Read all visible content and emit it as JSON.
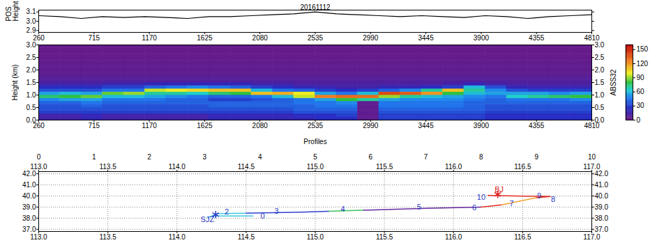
{
  "chart_data": [
    {
      "type": "line",
      "title": "20161112",
      "ylabel": "POS Height",
      "color": "#000000",
      "x": [
        260,
        435,
        610,
        785,
        960,
        1135,
        1310,
        1485,
        1660,
        1835,
        2010,
        2185,
        2360,
        2535,
        2710,
        2885,
        3060,
        3235,
        3410,
        3585,
        3760,
        3935,
        4110,
        4285,
        4460,
        4635,
        4810
      ],
      "values": [
        3.06,
        3.05,
        3.03,
        3.05,
        3.04,
        3.05,
        3.04,
        3.03,
        3.05,
        3.05,
        3.06,
        3.07,
        3.08,
        3.1,
        3.08,
        3.07,
        3.06,
        3.05,
        3.06,
        3.05,
        3.04,
        3.06,
        3.05,
        3.03,
        3.05,
        3.06,
        3.07
      ],
      "xlim": [
        260,
        4810
      ],
      "xticks": [
        260,
        715,
        1170,
        1625,
        2080,
        2535,
        2990,
        3445,
        3900,
        4355,
        4810
      ],
      "ylim": [
        2.88,
        3.12
      ],
      "yticks": [
        2.9,
        {
          "value": 3,
          "label": "3.0"
        },
        3.1
      ]
    },
    {
      "type": "heatmap",
      "xlabel": "Profiles",
      "ylabel": "Height (km)",
      "y2label": "ABSS32",
      "x_edges": [
        260,
        435,
        610,
        785,
        960,
        1135,
        1310,
        1485,
        1660,
        1835,
        2010,
        2185,
        2360,
        2535,
        2710,
        2885,
        3060,
        3235,
        3410,
        3585,
        3760,
        3935,
        4110,
        4285,
        4460,
        4635,
        4810
      ],
      "y_edges": [
        0,
        0.125,
        0.25,
        0.375,
        0.5,
        0.625,
        0.75,
        0.875,
        1,
        1.125,
        1.25,
        1.375,
        1.5,
        1.625,
        1.75,
        1.875,
        2,
        2.125,
        2.25,
        2.375,
        2.5,
        2.625,
        2.75,
        2.875,
        3
      ],
      "cells": [
        [
          15,
          15,
          30,
          35,
          35,
          40,
          50,
          75,
          55,
          35,
          25,
          15,
          10,
          8,
          6,
          5,
          5,
          5,
          4,
          4,
          3,
          3,
          3,
          3
        ],
        [
          15,
          15,
          30,
          35,
          35,
          40,
          55,
          80,
          60,
          35,
          25,
          15,
          10,
          8,
          6,
          5,
          5,
          5,
          4,
          4,
          3,
          3,
          3,
          3
        ],
        [
          20,
          20,
          30,
          35,
          40,
          45,
          55,
          85,
          55,
          35,
          25,
          15,
          10,
          8,
          6,
          5,
          5,
          5,
          4,
          4,
          3,
          3,
          3,
          3
        ],
        [
          15,
          15,
          30,
          35,
          35,
          40,
          45,
          60,
          85,
          45,
          30,
          18,
          10,
          8,
          6,
          5,
          5,
          5,
          4,
          4,
          3,
          3,
          3,
          3
        ],
        [
          15,
          15,
          30,
          35,
          35,
          40,
          45,
          60,
          90,
          45,
          30,
          18,
          10,
          8,
          6,
          5,
          5,
          5,
          4,
          4,
          3,
          3,
          3,
          3
        ],
        [
          15,
          15,
          30,
          35,
          35,
          40,
          45,
          55,
          70,
          95,
          40,
          20,
          10,
          8,
          6,
          5,
          5,
          5,
          4,
          4,
          3,
          3,
          3,
          3
        ],
        [
          15,
          15,
          30,
          35,
          35,
          40,
          40,
          50,
          70,
          100,
          45,
          20,
          10,
          8,
          6,
          5,
          5,
          5,
          4,
          4,
          3,
          3,
          3,
          3
        ],
        [
          15,
          15,
          30,
          35,
          35,
          40,
          40,
          45,
          65,
          105,
          50,
          20,
          10,
          8,
          6,
          5,
          5,
          5,
          4,
          4,
          3,
          3,
          3,
          3
        ],
        [
          20,
          20,
          30,
          35,
          40,
          40,
          30,
          40,
          75,
          110,
          45,
          20,
          10,
          8,
          6,
          5,
          5,
          5,
          4,
          4,
          3,
          3,
          3,
          3
        ],
        [
          20,
          20,
          30,
          35,
          40,
          40,
          30,
          40,
          80,
          110,
          40,
          20,
          10,
          8,
          6,
          5,
          5,
          5,
          4,
          4,
          3,
          3,
          3,
          3
        ],
        [
          20,
          20,
          30,
          35,
          40,
          40,
          35,
          45,
          110,
          60,
          30,
          15,
          10,
          8,
          6,
          5,
          5,
          5,
          4,
          4,
          3,
          3,
          3,
          3
        ],
        [
          20,
          20,
          30,
          35,
          40,
          40,
          40,
          60,
          115,
          45,
          25,
          15,
          10,
          8,
          6,
          5,
          5,
          5,
          4,
          4,
          3,
          3,
          3,
          3
        ],
        [
          20,
          25,
          35,
          40,
          40,
          45,
          45,
          95,
          100,
          40,
          20,
          12,
          10,
          8,
          6,
          5,
          5,
          5,
          4,
          4,
          3,
          3,
          3,
          3
        ],
        [
          25,
          25,
          35,
          40,
          45,
          45,
          55,
          125,
          55,
          30,
          18,
          12,
          10,
          8,
          6,
          5,
          5,
          5,
          4,
          4,
          3,
          3,
          3,
          3
        ],
        [
          25,
          30,
          35,
          40,
          45,
          50,
          80,
          130,
          45,
          25,
          15,
          12,
          10,
          8,
          6,
          5,
          5,
          5,
          4,
          4,
          3,
          3,
          3,
          3
        ],
        [
          5,
          5,
          5,
          5,
          5,
          5,
          70,
          130,
          60,
          30,
          15,
          12,
          10,
          8,
          6,
          5,
          5,
          5,
          4,
          4,
          3,
          3,
          3,
          3
        ],
        [
          30,
          30,
          35,
          40,
          45,
          45,
          55,
          90,
          140,
          40,
          20,
          12,
          10,
          8,
          6,
          5,
          5,
          5,
          4,
          4,
          3,
          3,
          3,
          3
        ],
        [
          30,
          30,
          35,
          40,
          45,
          45,
          50,
          70,
          135,
          50,
          20,
          12,
          10,
          8,
          6,
          5,
          5,
          5,
          4,
          4,
          3,
          3,
          3,
          3
        ],
        [
          30,
          30,
          35,
          40,
          45,
          45,
          50,
          60,
          120,
          70,
          25,
          12,
          10,
          8,
          6,
          5,
          5,
          5,
          4,
          4,
          3,
          3,
          3,
          3
        ],
        [
          30,
          30,
          35,
          40,
          45,
          45,
          50,
          55,
          80,
          110,
          30,
          15,
          10,
          8,
          6,
          5,
          5,
          5,
          4,
          4,
          3,
          3,
          3,
          3
        ],
        [
          30,
          30,
          35,
          40,
          40,
          40,
          45,
          50,
          60,
          70,
          60,
          20,
          10,
          8,
          6,
          5,
          5,
          5,
          4,
          4,
          3,
          3,
          3,
          3
        ],
        [
          25,
          25,
          30,
          35,
          35,
          40,
          40,
          45,
          55,
          50,
          35,
          15,
          10,
          8,
          6,
          5,
          5,
          5,
          4,
          4,
          3,
          3,
          3,
          3
        ],
        [
          25,
          25,
          30,
          35,
          35,
          40,
          45,
          65,
          55,
          35,
          20,
          12,
          10,
          8,
          6,
          5,
          5,
          5,
          4,
          4,
          3,
          3,
          3,
          3
        ],
        [
          25,
          25,
          30,
          35,
          35,
          40,
          45,
          70,
          55,
          30,
          18,
          12,
          10,
          8,
          6,
          5,
          5,
          5,
          4,
          4,
          3,
          3,
          3,
          3
        ],
        [
          25,
          25,
          30,
          35,
          35,
          40,
          45,
          75,
          50,
          30,
          18,
          12,
          10,
          8,
          6,
          5,
          5,
          5,
          4,
          4,
          3,
          3,
          3,
          3
        ],
        [
          25,
          25,
          30,
          35,
          35,
          40,
          50,
          80,
          55,
          30,
          18,
          12,
          10,
          8,
          6,
          5,
          5,
          5,
          4,
          4,
          3,
          3,
          3,
          3
        ]
      ],
      "xlim": [
        260,
        4810
      ],
      "xticks": [
        260,
        715,
        1170,
        1625,
        2080,
        2535,
        2990,
        3445,
        3900,
        4355,
        4810
      ],
      "ylim": [
        0,
        3
      ],
      "yticks": [
        {
          "value": 0,
          "label": "0.0"
        },
        0.5,
        {
          "value": 1,
          "label": "1.0"
        },
        1.5,
        {
          "value": 2,
          "label": "2.0"
        },
        2.5,
        {
          "value": 3,
          "label": "3.0"
        }
      ],
      "colorbar": {
        "range": [
          0,
          160
        ],
        "ticks": [
          0,
          30,
          60,
          90,
          120,
          150
        ]
      }
    },
    {
      "type": "map",
      "grid": true,
      "xlim": [
        113,
        117
      ],
      "xticks": [
        {
          "value": 113,
          "label": "113.0"
        },
        113.5,
        {
          "value": 114,
          "label": "114.0"
        },
        114.5,
        {
          "value": 115,
          "label": "115.0"
        },
        115.5,
        {
          "value": 116,
          "label": "116.0"
        },
        116.5,
        {
          "value": 117,
          "label": "117.0"
        }
      ],
      "x2ticks": [
        {
          "value": 113,
          "label": "0"
        },
        {
          "value": 113.4,
          "label": "1"
        },
        {
          "value": 113.8,
          "label": "2"
        },
        {
          "value": 114.2,
          "label": "3"
        },
        {
          "value": 114.6,
          "label": "4"
        },
        {
          "value": 115,
          "label": "5"
        },
        {
          "value": 115.4,
          "label": "6"
        },
        {
          "value": 115.8,
          "label": "7"
        },
        {
          "value": 116.2,
          "label": "8"
        },
        {
          "value": 116.6,
          "label": "9"
        },
        {
          "value": 117,
          "label": "10"
        }
      ],
      "ylim": [
        36.8,
        42.2
      ],
      "yticks": [
        {
          "value": 37,
          "label": "37.0"
        },
        {
          "value": 38,
          "label": "38.0"
        },
        {
          "value": 39,
          "label": "39.0"
        },
        {
          "value": 40,
          "label": "40.0"
        },
        {
          "value": 41,
          "label": "41.0"
        },
        {
          "value": 42,
          "label": "42.0"
        }
      ],
      "series": [
        {
          "color": "#40c8e0",
          "lon": [
            114.22,
            114.3,
            114.5
          ],
          "lat": [
            38.05,
            38.42,
            38.45
          ]
        },
        {
          "color": "#40c8e0",
          "lon": [
            114.27,
            114.55
          ],
          "lat": [
            38.2,
            38.2
          ]
        },
        {
          "color": "#3040d0",
          "lon": [
            114.5,
            114.9,
            115.1
          ],
          "lat": [
            38.45,
            38.55,
            38.62
          ]
        },
        {
          "color": "#40c060",
          "lon": [
            115.1,
            115.35
          ],
          "lat": [
            38.62,
            38.72
          ]
        },
        {
          "color": "#6a2aa0",
          "lon": [
            115.35,
            115.8,
            116.2
          ],
          "lat": [
            38.72,
            38.88,
            39.0
          ]
        },
        {
          "color": "#e03020",
          "lon": [
            116.2,
            116.35
          ],
          "lat": [
            39.0,
            39.2
          ]
        },
        {
          "color": "#f0a030",
          "lon": [
            116.35,
            116.6
          ],
          "lat": [
            39.2,
            39.85
          ]
        },
        {
          "color": "#e03020",
          "lon": [
            116.6,
            116.7,
            116.25
          ],
          "lat": [
            39.85,
            39.95,
            40.05
          ]
        }
      ],
      "annotations": [
        {
          "text": "0",
          "lon": 114.62,
          "lat": 38.2,
          "color": "#2a3ac8"
        },
        {
          "text": "2",
          "lon": 114.36,
          "lat": 38.55,
          "color": "#2a3ac8"
        },
        {
          "text": "3",
          "lon": 114.72,
          "lat": 38.65,
          "color": "#2a3ac8"
        },
        {
          "text": "4",
          "lon": 115.2,
          "lat": 38.8,
          "color": "#2a3ac8"
        },
        {
          "text": "5",
          "lon": 115.75,
          "lat": 39.0,
          "color": "#2a3ac8"
        },
        {
          "text": "6",
          "lon": 116.15,
          "lat": 38.92,
          "color": "#2a3ac8"
        },
        {
          "text": "7",
          "lon": 116.42,
          "lat": 39.3,
          "color": "#2a3ac8"
        },
        {
          "text": "8",
          "lon": 116.72,
          "lat": 39.7,
          "color": "#2a3ac8"
        },
        {
          "text": "9",
          "lon": 116.62,
          "lat": 40.0,
          "color": "#2a3ac8"
        },
        {
          "text": "10",
          "lon": 116.2,
          "lat": 39.85,
          "color": "#2a3ac8"
        }
      ],
      "stations": [
        {
          "name": "SJZ",
          "lon": 114.28,
          "lat": 38.32,
          "label_lon": 114.22,
          "label_lat": 37.85,
          "color": "#2a3ac8",
          "marker": "asterisk"
        },
        {
          "name": "BJ",
          "lon": 116.32,
          "lat": 40.15,
          "label_lon": 116.33,
          "label_lat": 40.6,
          "color": "#e02020",
          "marker": "asterisk"
        }
      ]
    }
  ]
}
